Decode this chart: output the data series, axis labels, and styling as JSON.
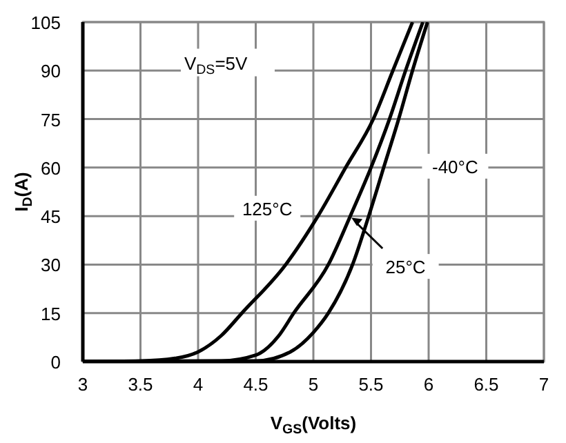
{
  "chart_data": {
    "type": "line",
    "xlabel": "V$_{GS}$(Volts)",
    "ylabel": "I$_{D}$(A)",
    "annotations": [
      "V$_{DS}$=5V"
    ],
    "xlim": [
      3,
      7
    ],
    "xticks": [
      3,
      3.5,
      4,
      4.5,
      5,
      5.5,
      6,
      6.5,
      7
    ],
    "ylim": [
      0,
      105
    ],
    "yticks": [
      0,
      15,
      30,
      45,
      60,
      75,
      90,
      105
    ],
    "grid": true,
    "series": [
      {
        "name": "125°C",
        "color": "#000000",
        "x": [
          3,
          3.5,
          3.8,
          4,
          4.2,
          4.38,
          4.76,
          5.04,
          5.28,
          5.52,
          5.69,
          5.86
        ],
        "values": [
          0,
          0.2,
          1,
          3,
          8,
          15,
          30,
          45,
          60,
          75,
          90,
          105
        ]
      },
      {
        "name": "25°C",
        "color": "#000000",
        "x": [
          3,
          4.2,
          4.5,
          4.7,
          4.83,
          5.13,
          5.32,
          5.5,
          5.66,
          5.8,
          5.95
        ],
        "values": [
          0,
          0.2,
          2,
          8,
          15,
          30,
          45,
          60,
          75,
          90,
          105
        ]
      },
      {
        "name": "-40°C",
        "color": "#000000",
        "x": [
          3,
          4.5,
          4.8,
          5,
          5.13,
          5.34,
          5.48,
          5.61,
          5.74,
          5.86,
          5.99
        ],
        "values": [
          0,
          0.2,
          3,
          9,
          15,
          30,
          45,
          60,
          75,
          90,
          105
        ]
      }
    ]
  }
}
